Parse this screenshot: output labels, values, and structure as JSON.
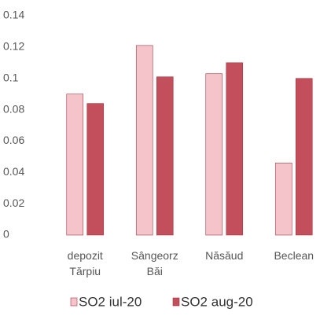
{
  "chart_data": {
    "type": "bar",
    "categories": [
      "depozit Tărpiu",
      "Sângeorz Băi",
      "Năsăud",
      "Beclean"
    ],
    "series": [
      {
        "name": "SO2 iul-20",
        "color": "#f5c4ca",
        "values": [
          0.09,
          0.121,
          0.103,
          0.046
        ]
      },
      {
        "name": "SO2 aug-20",
        "color": "#c24f5b",
        "values": [
          0.084,
          0.101,
          0.11,
          0.1
        ]
      }
    ],
    "ylim": [
      0,
      0.14
    ],
    "yticks": [
      0,
      0.02,
      0.04,
      0.06,
      0.08,
      0.1,
      0.12,
      0.14
    ],
    "legend": "bottom"
  }
}
